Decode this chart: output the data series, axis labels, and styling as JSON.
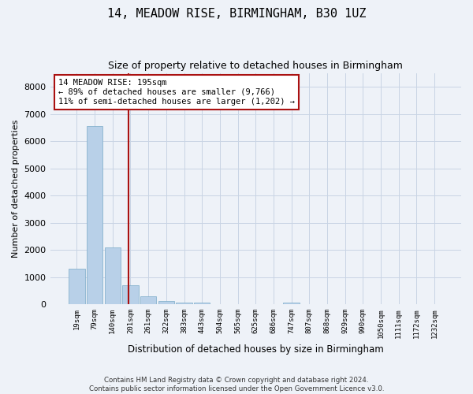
{
  "title": "14, MEADOW RISE, BIRMINGHAM, B30 1UZ",
  "subtitle": "Size of property relative to detached houses in Birmingham",
  "xlabel": "Distribution of detached houses by size in Birmingham",
  "ylabel": "Number of detached properties",
  "footer_line1": "Contains HM Land Registry data © Crown copyright and database right 2024.",
  "footer_line2": "Contains public sector information licensed under the Open Government Licence v3.0.",
  "bar_labels": [
    "19sqm",
    "79sqm",
    "140sqm",
    "201sqm",
    "261sqm",
    "322sqm",
    "383sqm",
    "443sqm",
    "504sqm",
    "565sqm",
    "625sqm",
    "686sqm",
    "747sqm",
    "807sqm",
    "868sqm",
    "929sqm",
    "990sqm",
    "1050sqm",
    "1111sqm",
    "1172sqm",
    "1232sqm"
  ],
  "bar_values": [
    1300,
    6550,
    2100,
    700,
    300,
    110,
    60,
    60,
    0,
    0,
    0,
    0,
    60,
    0,
    0,
    0,
    0,
    0,
    0,
    0,
    0
  ],
  "bar_color": "#b8d0e8",
  "bar_edge_color": "#7aaac8",
  "grid_color": "#c8d4e4",
  "bg_color": "#eef2f8",
  "vline_color": "#aa1111",
  "annotation_text": "14 MEADOW RISE: 195sqm\n← 89% of detached houses are smaller (9,766)\n11% of semi-detached houses are larger (1,202) →",
  "annotation_box_color": "#ffffff",
  "annotation_box_edge_color": "#aa1111",
  "ylim": [
    0,
    8500
  ],
  "yticks": [
    0,
    1000,
    2000,
    3000,
    4000,
    5000,
    6000,
    7000,
    8000
  ]
}
